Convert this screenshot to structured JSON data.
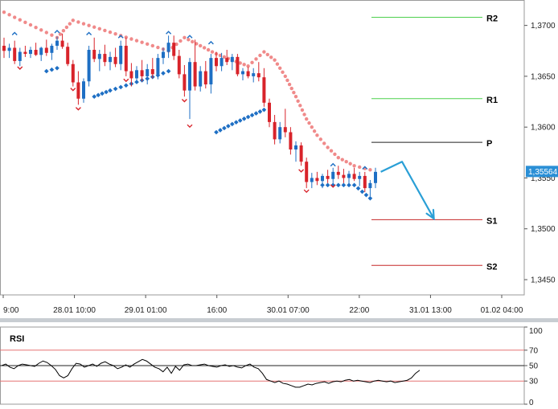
{
  "chart_data": [
    {
      "type": "candlestick",
      "price_axis": {
        "ylim": [
          1.3435,
          1.3725
        ],
        "ticks": [
          {
            "value": 1.37,
            "label": "1,3700"
          },
          {
            "value": 1.365,
            "label": "1,3650"
          },
          {
            "value": 1.36,
            "label": "1,3600"
          },
          {
            "value": 1.355,
            "label": "1,3550"
          },
          {
            "value": 1.35,
            "label": "1,3500"
          },
          {
            "value": 1.345,
            "label": "1,3450"
          }
        ],
        "current_price": {
          "value": 1.35564,
          "label": "1,35564",
          "color": "#2a8fd6"
        }
      },
      "time_axis": {
        "labels": [
          "9:00",
          "28.01 10:00",
          "29.01 01:00",
          "16:00",
          "30.01 07:00",
          "22:00",
          "31.01 13:00",
          "01.02 04:00"
        ]
      },
      "candles": [
        [
          1.368,
          1.3688,
          1.3668,
          1.3675
        ],
        [
          1.3675,
          1.3682,
          1.3668,
          1.3678
        ],
        [
          1.3678,
          1.3685,
          1.3662,
          1.3665
        ],
        [
          1.3665,
          1.3678,
          1.366,
          1.3674
        ],
        [
          1.3674,
          1.368,
          1.3669,
          1.3672
        ],
        [
          1.3672,
          1.3679,
          1.3668,
          1.3676
        ],
        [
          1.3676,
          1.3683,
          1.367,
          1.3671
        ],
        [
          1.3671,
          1.3679,
          1.3665,
          1.3678
        ],
        [
          1.3678,
          1.3686,
          1.367,
          1.3673
        ],
        [
          1.3673,
          1.3682,
          1.3666,
          1.368
        ],
        [
          1.368,
          1.3689,
          1.3676,
          1.3685
        ],
        [
          1.3685,
          1.3692,
          1.3677,
          1.3679
        ],
        [
          1.3679,
          1.3683,
          1.366,
          1.3662
        ],
        [
          1.3662,
          1.3666,
          1.364,
          1.3644
        ],
        [
          1.3644,
          1.3655,
          1.3622,
          1.3628
        ],
        [
          1.3628,
          1.3648,
          1.3624,
          1.3645
        ],
        [
          1.3645,
          1.368,
          1.364,
          1.3676
        ],
        [
          1.3676,
          1.3688,
          1.3664,
          1.3667
        ],
        [
          1.3667,
          1.3676,
          1.3655,
          1.3672
        ],
        [
          1.3672,
          1.3681,
          1.366,
          1.3664
        ],
        [
          1.3664,
          1.3674,
          1.3656,
          1.3669
        ],
        [
          1.3669,
          1.3678,
          1.3659,
          1.3662
        ],
        [
          1.3662,
          1.3685,
          1.3656,
          1.368
        ],
        [
          1.368,
          1.3688,
          1.365,
          1.3655
        ],
        [
          1.3655,
          1.3663,
          1.364,
          1.3648
        ],
        [
          1.3648,
          1.366,
          1.3644,
          1.3656
        ],
        [
          1.3656,
          1.3666,
          1.3645,
          1.365
        ],
        [
          1.365,
          1.3662,
          1.3642,
          1.3657
        ],
        [
          1.3657,
          1.3668,
          1.3648,
          1.3652
        ],
        [
          1.3652,
          1.3672,
          1.3647,
          1.3668
        ],
        [
          1.3668,
          1.3678,
          1.3662,
          1.3674
        ],
        [
          1.3674,
          1.369,
          1.3668,
          1.3683
        ],
        [
          1.3683,
          1.369,
          1.3666,
          1.367
        ],
        [
          1.367,
          1.3676,
          1.3648,
          1.3652
        ],
        [
          1.3652,
          1.3661,
          1.363,
          1.3636
        ],
        [
          1.3636,
          1.3668,
          1.3608,
          1.3664
        ],
        [
          1.3664,
          1.3686,
          1.3636,
          1.364
        ],
        [
          1.364,
          1.366,
          1.3635,
          1.3655
        ],
        [
          1.3655,
          1.3665,
          1.3638,
          1.3642
        ],
        [
          1.3642,
          1.3672,
          1.3633,
          1.3668
        ],
        [
          1.3668,
          1.3674,
          1.3655,
          1.366
        ],
        [
          1.366,
          1.3673,
          1.3655,
          1.3668
        ],
        [
          1.3668,
          1.3676,
          1.3661,
          1.3664
        ],
        [
          1.3664,
          1.3672,
          1.3656,
          1.3669
        ],
        [
          1.3669,
          1.3672,
          1.365,
          1.3652
        ],
        [
          1.3652,
          1.3658,
          1.3646,
          1.3655
        ],
        [
          1.3655,
          1.3659,
          1.3648,
          1.365
        ],
        [
          1.365,
          1.3658,
          1.3644,
          1.3653
        ],
        [
          1.3653,
          1.3664,
          1.3645,
          1.3649
        ],
        [
          1.3649,
          1.3658,
          1.362,
          1.3624
        ],
        [
          1.3624,
          1.3628,
          1.36,
          1.3605
        ],
        [
          1.3605,
          1.3612,
          1.3583,
          1.3588
        ],
        [
          1.3588,
          1.3605,
          1.3584,
          1.36
        ],
        [
          1.36,
          1.3618,
          1.359,
          1.3595
        ],
        [
          1.3595,
          1.36,
          1.3573,
          1.3578
        ],
        [
          1.3578,
          1.3586,
          1.3566,
          1.3582
        ],
        [
          1.3582,
          1.3585,
          1.3562,
          1.3566
        ],
        [
          1.3566,
          1.357,
          1.354,
          1.3546
        ],
        [
          1.3546,
          1.3555,
          1.354,
          1.355
        ],
        [
          1.355,
          1.3556,
          1.3543,
          1.3547
        ],
        [
          1.3547,
          1.3554,
          1.354,
          1.3552
        ],
        [
          1.3552,
          1.3558,
          1.3545,
          1.3549
        ],
        [
          1.3549,
          1.356,
          1.3545,
          1.3556
        ],
        [
          1.3556,
          1.3562,
          1.3549,
          1.3553
        ],
        [
          1.3553,
          1.3559,
          1.3545,
          1.355
        ],
        [
          1.355,
          1.3557,
          1.3543,
          1.3554
        ],
        [
          1.3554,
          1.356,
          1.3547,
          1.3549
        ],
        [
          1.3549,
          1.3556,
          1.3542,
          1.3552
        ],
        [
          1.3552,
          1.3556,
          1.3536,
          1.354
        ],
        [
          1.354,
          1.3548,
          1.3532,
          1.3545
        ],
        [
          1.3545,
          1.356,
          1.354,
          1.3556
        ]
      ],
      "fractals_up": [
        [
          2,
          1.3693
        ],
        [
          10,
          1.3695
        ],
        [
          16,
          1.3693
        ],
        [
          22,
          1.369
        ],
        [
          31,
          1.3694
        ],
        [
          35,
          1.369
        ],
        [
          39,
          1.3684
        ],
        [
          62,
          1.3564
        ],
        [
          68,
          1.3561
        ]
      ],
      "fractals_down": [
        [
          3,
          1.3657
        ],
        [
          13,
          1.3636
        ],
        [
          14,
          1.3617
        ],
        [
          23,
          1.3645
        ],
        [
          34,
          1.3625
        ],
        [
          35,
          1.36
        ],
        [
          56,
          1.3556
        ],
        [
          57,
          1.3536
        ],
        [
          62,
          1.3541
        ]
      ],
      "sar_above": [
        [
          0,
          1.3713
        ],
        [
          2,
          1.3708
        ],
        [
          4,
          1.3703
        ],
        [
          6,
          1.3698
        ],
        [
          8,
          1.3693
        ],
        [
          10,
          1.3688
        ],
        [
          13,
          1.3705
        ],
        [
          16,
          1.37
        ],
        [
          19,
          1.3695
        ],
        [
          22,
          1.369
        ],
        [
          25,
          1.3685
        ],
        [
          28,
          1.368
        ],
        [
          31,
          1.3675
        ],
        [
          34,
          1.3688
        ],
        [
          37,
          1.368
        ],
        [
          40,
          1.3672
        ],
        [
          43,
          1.3666
        ],
        [
          46,
          1.366
        ],
        [
          49,
          1.3674
        ],
        [
          51,
          1.3666
        ],
        [
          53,
          1.365
        ],
        [
          55,
          1.363
        ],
        [
          57,
          1.3608
        ],
        [
          59,
          1.3592
        ],
        [
          61,
          1.358
        ],
        [
          63,
          1.357
        ],
        [
          66,
          1.3562
        ],
        [
          69,
          1.3558
        ]
      ],
      "sar_below": [
        [
          8,
          1.3655
        ],
        [
          10,
          1.3658
        ],
        [
          17,
          1.363
        ],
        [
          20,
          1.3636
        ],
        [
          23,
          1.3641
        ],
        [
          26,
          1.3646
        ],
        [
          29,
          1.3651
        ],
        [
          31,
          1.3655
        ],
        [
          40,
          1.3595
        ],
        [
          43,
          1.3603
        ],
        [
          46,
          1.361
        ],
        [
          49,
          1.3617
        ],
        [
          60,
          1.3543
        ],
        [
          63,
          1.3543
        ],
        [
          66,
          1.3543
        ],
        [
          69,
          1.353
        ]
      ],
      "pivots": [
        {
          "label": "R2",
          "value": 1.3708,
          "color": "#4dd04d"
        },
        {
          "label": "R1",
          "value": 1.3628,
          "color": "#4dd04d"
        },
        {
          "label": "P",
          "value": 1.3585,
          "color": "#222222"
        },
        {
          "label": "S1",
          "value": 1.3509,
          "color": "#c62828"
        },
        {
          "label": "S2",
          "value": 1.3464,
          "color": "#c62828"
        }
      ],
      "forecast_arrow": {
        "points": [
          [
            71,
            1.3556
          ],
          [
            75,
            1.3566
          ],
          [
            81,
            1.351
          ]
        ],
        "color": "#2a9fd6"
      },
      "colors": {
        "bull": "#1e6fc4",
        "bear": "#d8232a",
        "sar_above": "#f08a8a",
        "sar_below": "#1e6fc4",
        "grid": "#cccccc"
      }
    },
    {
      "type": "line",
      "title": "RSI",
      "ylim": [
        0,
        100
      ],
      "ticks": [
        {
          "value": 100,
          "label": "100"
        },
        {
          "value": 70,
          "label": "70"
        },
        {
          "value": 50,
          "label": "50"
        },
        {
          "value": 30,
          "label": "30"
        },
        {
          "value": 0,
          "label": "0"
        }
      ],
      "levels": [
        {
          "value": 70,
          "color": "#e57373"
        },
        {
          "value": 50,
          "color": "#222222"
        },
        {
          "value": 30,
          "color": "#e57373"
        }
      ],
      "values": [
        50,
        52,
        48,
        46,
        50,
        52,
        51,
        50,
        49,
        53,
        56,
        54,
        50,
        45,
        37,
        34,
        37,
        46,
        53,
        52,
        48,
        50,
        52,
        49,
        53,
        55,
        52,
        50,
        46,
        48,
        51,
        48,
        52,
        55,
        58,
        56,
        52,
        48,
        46,
        42,
        48,
        40,
        49,
        44,
        51,
        52,
        50,
        50,
        51,
        52,
        50,
        49,
        48,
        50,
        51,
        49,
        50,
        48,
        47,
        50,
        52,
        48,
        46,
        40,
        32,
        30,
        28,
        30,
        27,
        26,
        24,
        22,
        22,
        24,
        26,
        25,
        27,
        28,
        29,
        27,
        29,
        30,
        29,
        31,
        32,
        30,
        31,
        30,
        29,
        28,
        30,
        31,
        30,
        29,
        30,
        28,
        29,
        30,
        31,
        34,
        40,
        44
      ],
      "color": "#000000"
    }
  ]
}
